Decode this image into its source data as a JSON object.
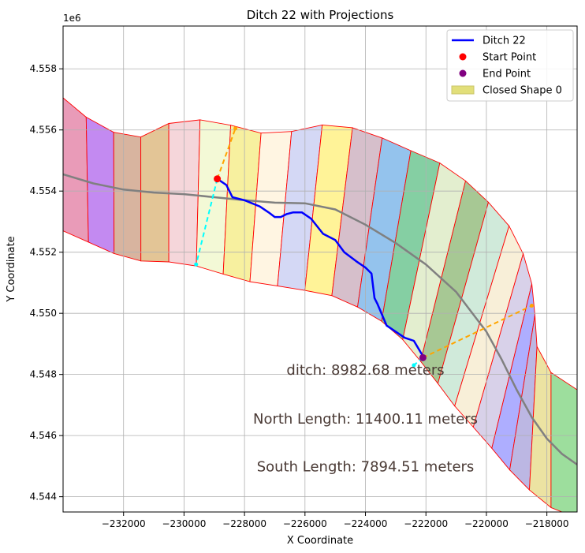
{
  "chart_data": {
    "type": "line",
    "title": "Ditch 22 with Projections",
    "xlabel": "X Coordinate",
    "ylabel": "Y Coordinate",
    "offset_label": "1e6",
    "xlim": [
      -234000,
      -217000
    ],
    "ylim": [
      4543500,
      4559400
    ],
    "x_ticks": [
      -232000,
      -230000,
      -228000,
      -226000,
      -224000,
      -222000,
      -220000,
      -218000
    ],
    "x_tick_labels": [
      "−232000",
      "−230000",
      "−228000",
      "−226000",
      "−224000",
      "−222000",
      "−220000",
      "−218000"
    ],
    "y_ticks": [
      4544000,
      4546000,
      4548000,
      4550000,
      4552000,
      4554000,
      4556000,
      4558000
    ],
    "y_tick_labels": [
      "4.544",
      "4.546",
      "4.548",
      "4.550",
      "4.552",
      "4.554",
      "4.556",
      "4.558"
    ],
    "grid": true,
    "legend_position": "top-right",
    "legend": [
      {
        "label": "Ditch 22",
        "kind": "line",
        "color": "#0000ff"
      },
      {
        "label": "Start Point",
        "kind": "dot",
        "color": "#ff0000"
      },
      {
        "label": "End Point",
        "kind": "dot",
        "color": "#800080"
      },
      {
        "label": "Closed Shape 0",
        "kind": "patch",
        "color": "#e2df7a"
      }
    ],
    "ditch": {
      "color": "#0000ff",
      "x": [
        -228900,
        -228600,
        -228400,
        -228000,
        -227500,
        -227200,
        -227000,
        -226800,
        -226600,
        -226400,
        -226100,
        -225800,
        -225400,
        -225000,
        -224700,
        -224300,
        -224000,
        -223800,
        -223700,
        -223600,
        -223300,
        -223000,
        -222700,
        -222400,
        -222100
      ],
      "y": [
        4554400,
        4554200,
        4553800,
        4553700,
        4553500,
        4553300,
        4553150,
        4553150,
        4553250,
        4553300,
        4553300,
        4553100,
        4552600,
        4552400,
        4552000,
        4551700,
        4551500,
        4551300,
        4550500,
        4550300,
        4549600,
        4549400,
        4549200,
        4549100,
        4548600
      ]
    },
    "centerline": {
      "color": "#808080",
      "x": [
        -234000,
        -233000,
        -232000,
        -231000,
        -230000,
        -229000,
        -228000,
        -227000,
        -226000,
        -225000,
        -224000,
        -223000,
        -222000,
        -221000,
        -220000,
        -219500,
        -219000,
        -218500,
        -218000,
        -217500,
        -217000
      ],
      "y": [
        4554550,
        4554250,
        4554050,
        4553950,
        4553900,
        4553800,
        4553700,
        4553620,
        4553600,
        4553400,
        4552900,
        4552300,
        4551600,
        4550700,
        4549400,
        4548500,
        4547500,
        4546600,
        4545900,
        4545400,
        4545050
      ]
    },
    "start_point": {
      "x": -228900,
      "y": 4554400,
      "color": "#ff0000"
    },
    "end_point": {
      "x": -222100,
      "y": 4548550,
      "color": "#800080"
    },
    "projections": [
      {
        "color": "#ffa500",
        "x": [
          -228900,
          -228300
        ],
        "y": [
          4554400,
          4556050
        ]
      },
      {
        "color": "#00ffff",
        "x": [
          -228900,
          -229600
        ],
        "y": [
          4554400,
          4551600
        ]
      },
      {
        "color": "#ffa500",
        "x": [
          -222100,
          -218500
        ],
        "y": [
          4548550,
          4550250
        ]
      },
      {
        "color": "#00ffff",
        "x": [
          -222100,
          -222400
        ],
        "y": [
          4548550,
          4548300
        ]
      }
    ],
    "north_boundary": {
      "x": [
        -234000,
        -233800,
        -232900,
        -232200,
        -231900,
        -231200,
        -230600,
        -229300,
        -228000,
        -227100,
        -226000,
        -225000,
        -223700,
        -222800,
        -221500,
        -220500,
        -219800,
        -219200,
        -218800,
        -218500,
        -218400,
        -218300,
        -217700,
        -217000
      ],
      "y": [
        4557050,
        4556700,
        4556250,
        4555850,
        4555600,
        4555850,
        4556200,
        4556350,
        4556050,
        4555800,
        4556050,
        4556250,
        4555850,
        4555450,
        4554900,
        4554200,
        4553500,
        4552800,
        4552000,
        4551000,
        4550000,
        4548500,
        4547900,
        4547500
      ]
    },
    "south_boundary": {
      "x": [
        -234000,
        -233900,
        -232800,
        -232000,
        -231000,
        -230200,
        -229000,
        -228100,
        -227200,
        -226500,
        -225500,
        -224700,
        -223800,
        -222900,
        -221900,
        -221000,
        -220000,
        -219000,
        -218000,
        -217000
      ],
      "y": [
        4552700,
        4552600,
        4552200,
        4551800,
        4551650,
        4551700,
        4551400,
        4551050,
        4551000,
        4550750,
        4550750,
        4550400,
        4550000,
        4549300,
        4548100,
        4546900,
        4545800,
        4544600,
        4543700,
        4543300
      ]
    },
    "shape_colors": [
      "#e896b4",
      "#c084f0",
      "#d6b09a",
      "#e2c290",
      "#f4d4d8",
      "#f2f9d4",
      "#f7ef9a",
      "#fff4e0",
      "#d2d6f4",
      "#fff292",
      "#d4bcc8",
      "#8ec0ec",
      "#7ecc9e",
      "#e2edcc",
      "#a2c58e",
      "#cde9d8",
      "#f8eed6",
      "#d6cfe8",
      "#aaaaff",
      "#b8b3e2",
      "#ebe29d",
      "#98dc98"
    ],
    "shape_boundary_color": "#ff0000",
    "annotations": [
      {
        "text": "ditch: 8982.68 meters",
        "x": -224000,
        "y": 4548150
      },
      {
        "text": "North Length: 11400.11 meters",
        "x": -224000,
        "y": 4546550
      },
      {
        "text": "South Length: 7894.51 meters",
        "x": -224000,
        "y": 4544980
      }
    ]
  }
}
